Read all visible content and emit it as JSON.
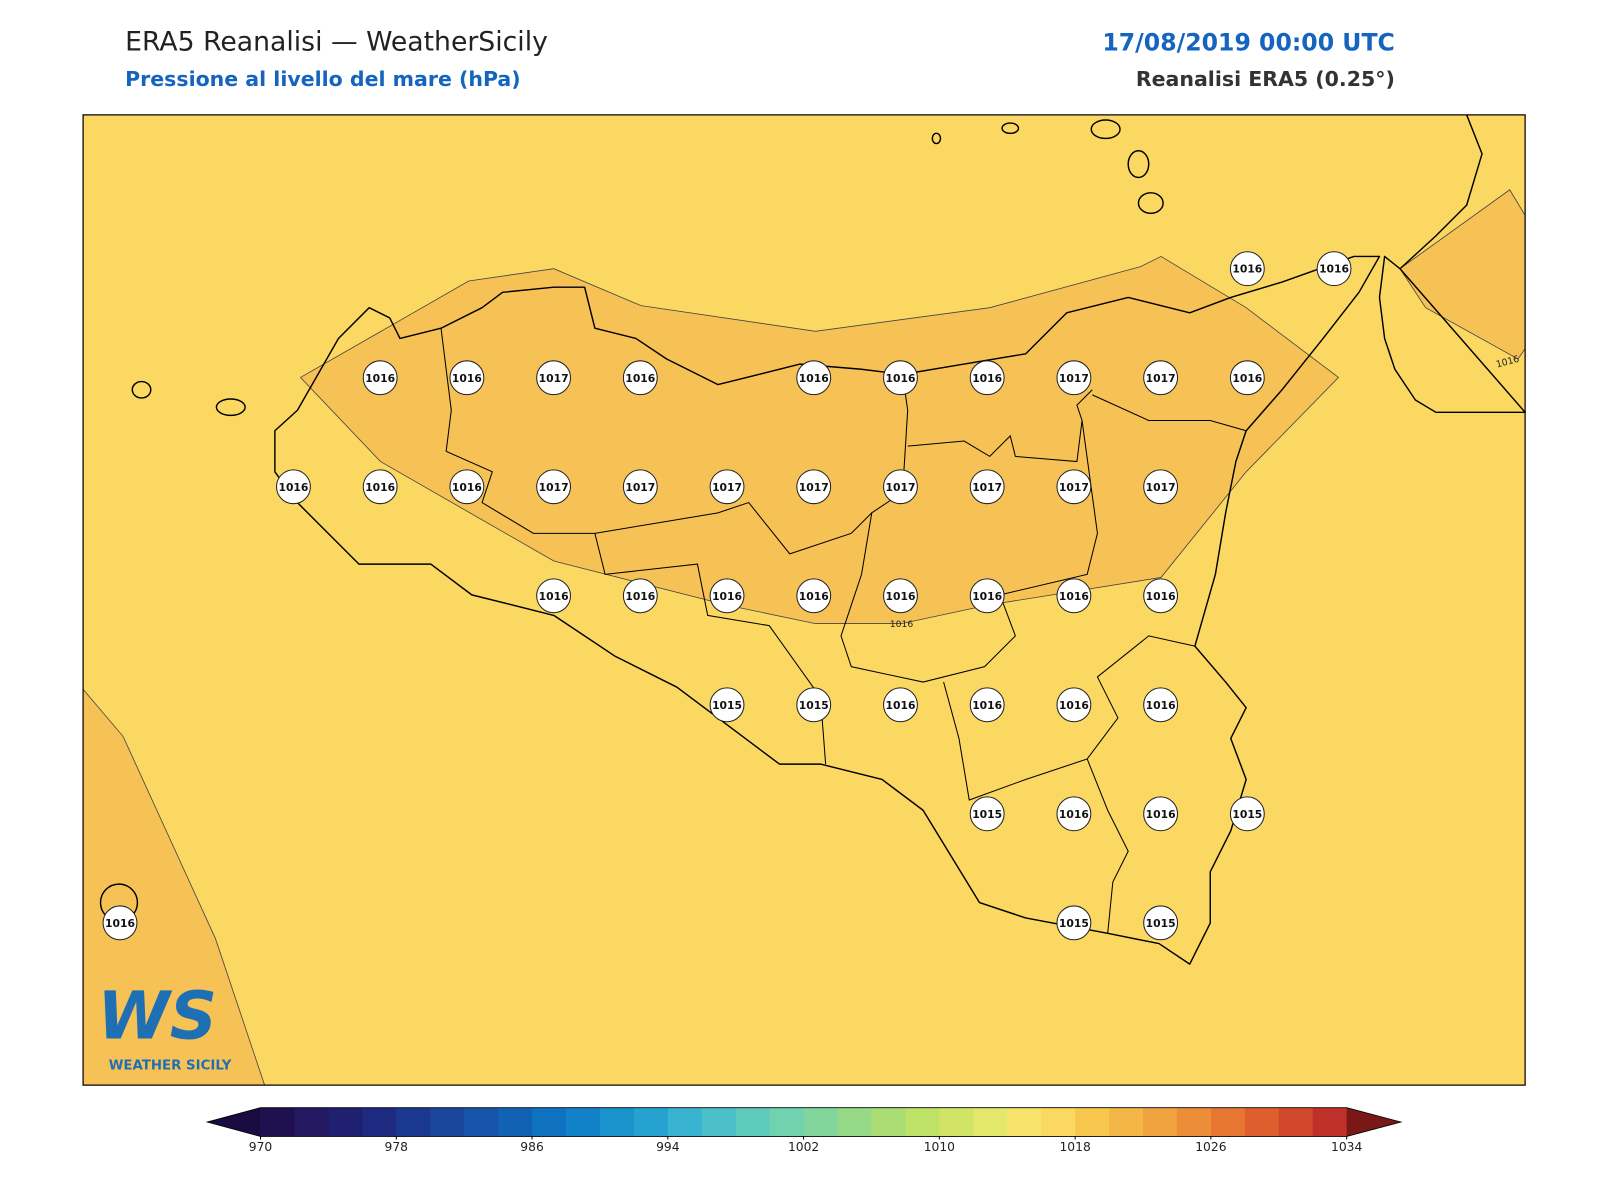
{
  "header": {
    "title": "ERA5 Reanalisi — WeatherSicily",
    "subtitle": "Pressione al livello del mare (hPa)",
    "date": "17/08/2019 00:00 UTC",
    "source": "Reanalisi ERA5 (0.25°)"
  },
  "stations": {
    "rows": [
      [
        null,
        null,
        null,
        null,
        null,
        null,
        null,
        null,
        null,
        null,
        null,
        null,
        null,
        1016,
        1016
      ],
      [
        null,
        null,
        null,
        1016,
        1016,
        1017,
        1016,
        null,
        1016,
        1016,
        1016,
        1017,
        1017,
        1016,
        null
      ],
      [
        null,
        null,
        1016,
        1016,
        1016,
        1017,
        1017,
        1017,
        1017,
        1017,
        1017,
        1017,
        1017,
        null,
        null
      ],
      [
        null,
        null,
        null,
        null,
        null,
        1016,
        1016,
        1016,
        1016,
        1016,
        1016,
        1016,
        1016,
        null,
        null
      ],
      [
        null,
        null,
        null,
        null,
        null,
        null,
        null,
        1015,
        1015,
        1016,
        1016,
        1016,
        1016,
        null,
        null
      ],
      [
        null,
        null,
        null,
        null,
        null,
        null,
        null,
        null,
        null,
        null,
        1015,
        1016,
        1016,
        1015,
        null
      ],
      [
        1016,
        null,
        null,
        null,
        null,
        null,
        null,
        null,
        null,
        null,
        null,
        1015,
        1015,
        null,
        null
      ]
    ]
  },
  "contour": {
    "level": 1016
  },
  "colorbar": {
    "levels": [
      970,
      972,
      974,
      976,
      978,
      980,
      982,
      984,
      986,
      988,
      990,
      992,
      994,
      996,
      998,
      1000,
      1002,
      1004,
      1006,
      1008,
      1010,
      1012,
      1014,
      1016,
      1018,
      1020,
      1022,
      1024,
      1026,
      1028,
      1030,
      1032,
      1034
    ],
    "ticks": [
      970,
      978,
      986,
      994,
      1002,
      1010,
      1018,
      1026,
      1034
    ],
    "colors": [
      "#1f1150",
      "#241860",
      "#1f2070",
      "#1e2a80",
      "#1b3890",
      "#1a469c",
      "#1554a8",
      "#1262b4",
      "#0f72c0",
      "#1282c8",
      "#1a92cc",
      "#26a2d0",
      "#38b4d0",
      "#4cc0c8",
      "#5ecabc",
      "#70d2ae",
      "#82d69c",
      "#96da88",
      "#aade74",
      "#bee266",
      "#d2e466",
      "#e4e86a",
      "#f6e46a",
      "#fad861",
      "#f8c84e",
      "#f4b646",
      "#f0a23e",
      "#ec8e38",
      "#e67632",
      "#de5e2e",
      "#d2482c",
      "#c0302a"
    ],
    "under_color": "#1a0c40",
    "over_color": "#7a1818"
  },
  "logo": {
    "mark": "WS",
    "text": "WEATHER SICILY"
  }
}
